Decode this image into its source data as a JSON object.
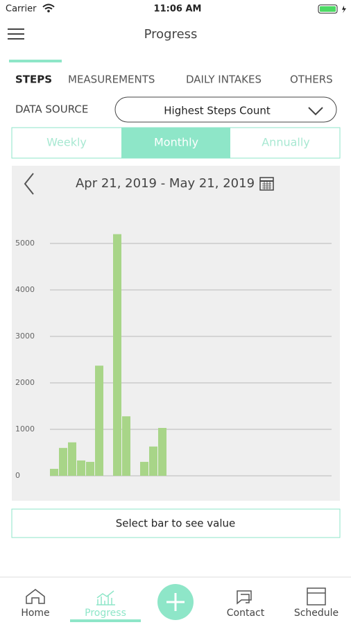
{
  "status": {
    "carrier": "Carrier",
    "time": "11:06 AM"
  },
  "header": {
    "title": "Progress"
  },
  "tabs": [
    "STEPS",
    "MEASUREMENTS",
    "DAILY INTAKES",
    "OTHERS"
  ],
  "data_source": {
    "label": "DATA SOURCE",
    "value": "Highest Steps Count"
  },
  "periods": [
    "Weekly",
    "Monthly",
    "Annually"
  ],
  "date_range": "Apr 21, 2019 - May 21, 2019",
  "chart_data": {
    "type": "bar",
    "categories": [
      null,
      null,
      null,
      null,
      null,
      null,
      null,
      null,
      null,
      null,
      null,
      null,
      null,
      null,
      null,
      null,
      null,
      null,
      null,
      null,
      null,
      null,
      null,
      null,
      null,
      null,
      null,
      null,
      null,
      null,
      null
    ],
    "values": [
      150,
      600,
      720,
      330,
      300,
      2370,
      0,
      5200,
      1280,
      0,
      300,
      630,
      1030,
      0,
      0,
      0,
      0,
      0,
      0,
      0,
      0,
      0,
      0,
      0,
      0,
      0,
      0,
      0,
      0,
      0,
      0
    ],
    "color": "#a8d588",
    "ylim": [
      0,
      5500
    ],
    "yticks": [
      0,
      1000,
      2000,
      3000,
      4000,
      5000
    ],
    "grid": true
  },
  "hint": "Select bar to see value",
  "nav": [
    "Home",
    "Progress",
    "Contact",
    "Schedule"
  ]
}
